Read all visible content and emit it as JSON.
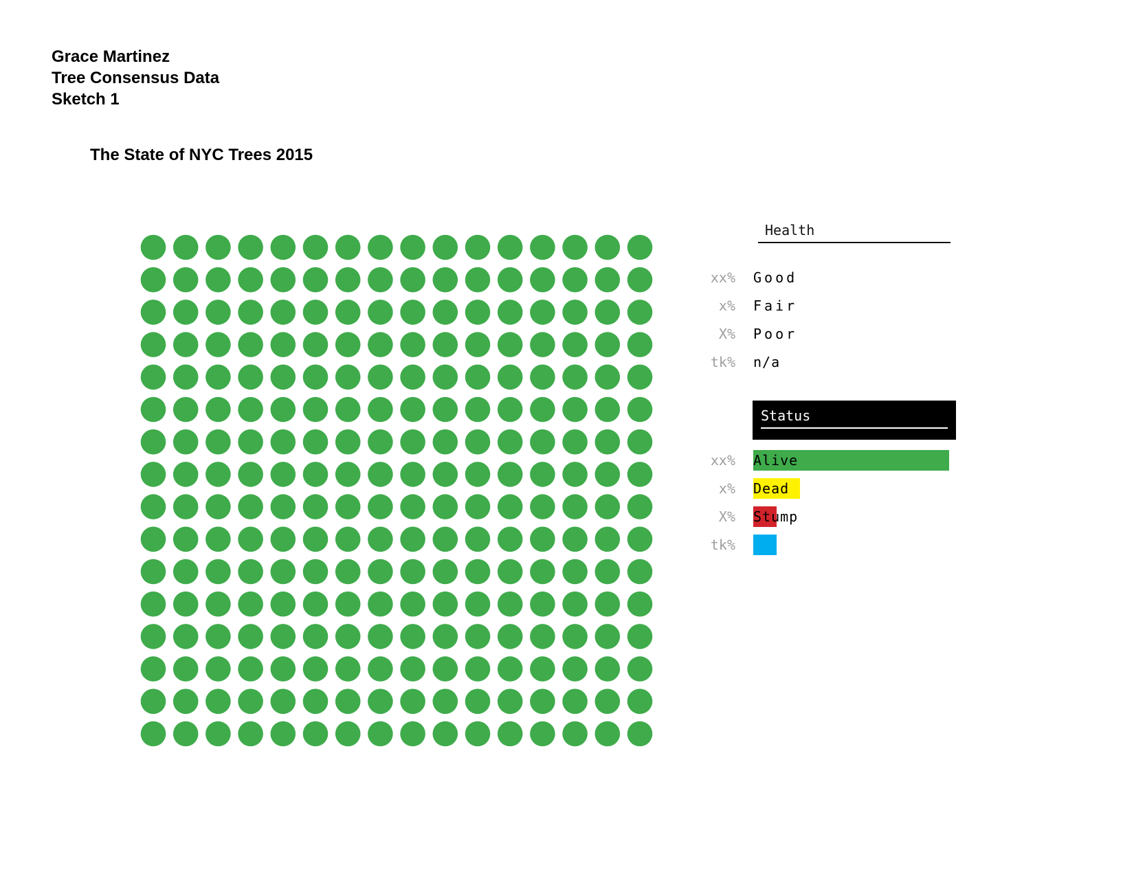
{
  "header": {
    "author": "Grace Martinez",
    "project": "Tree Consensus Data",
    "sketch": "Sketch 1"
  },
  "chart_data": {
    "type": "waffle",
    "title": "The State of NYC Trees 2015",
    "rows": 16,
    "cols": 16,
    "dot_color": "#3fab4b",
    "legends": {
      "health": {
        "title": "Health",
        "items": [
          {
            "pct": "xx%",
            "label": "Good"
          },
          {
            "pct": "x%",
            "label": "Fair"
          },
          {
            "pct": "X%",
            "label": "Poor"
          },
          {
            "pct": "tk%",
            "label": "n/a"
          }
        ]
      },
      "status": {
        "title": "Status",
        "items": [
          {
            "pct": "xx%",
            "label": "Alive",
            "color": "#3fab4b",
            "bar_fraction": 1.0
          },
          {
            "pct": "x%",
            "label": "Dead",
            "color": "#fff200",
            "bar_fraction": 0.24
          },
          {
            "pct": "X%",
            "label": "Stump",
            "color": "#d2232a",
            "bar_fraction": 0.12
          },
          {
            "pct": "tk%",
            "label": "",
            "color": "#00aeef",
            "bar_fraction": 0.12
          }
        ]
      }
    }
  }
}
